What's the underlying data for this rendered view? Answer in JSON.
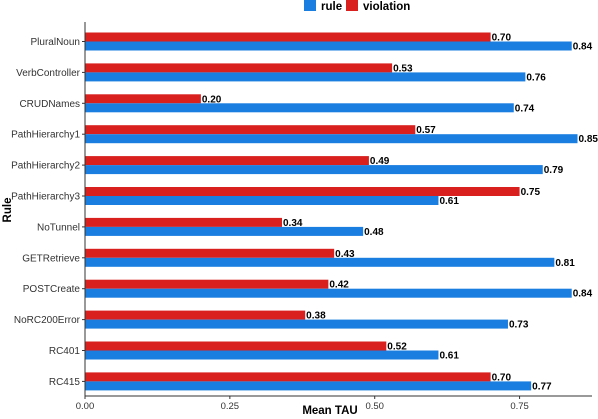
{
  "chart_data": {
    "type": "bar",
    "orientation": "horizontal",
    "xlabel": "Mean TAU",
    "ylabel": "Rule",
    "xlim": [
      0,
      0.875
    ],
    "xticks": [
      "0.00",
      "0.25",
      "0.50",
      "0.75"
    ],
    "legend_position": "top",
    "categories": [
      "PluralNoun",
      "VerbController",
      "CRUDNames",
      "PathHierarchy1",
      "PathHierarchy2",
      "PathHierarchy3",
      "NoTunnel",
      "GETRetrieve",
      "POSTCreate",
      "NoRC200Error",
      "RC401",
      "RC415"
    ],
    "series": [
      {
        "name": "rule",
        "color": "#1a7ee0",
        "values": [
          0.84,
          0.76,
          0.74,
          0.85,
          0.79,
          0.61,
          0.48,
          0.81,
          0.84,
          0.73,
          0.61,
          0.77
        ],
        "labels": [
          "0.84",
          "0.76",
          "0.74",
          "0.85",
          "0.79",
          "0.61",
          "0.48",
          "0.81",
          "0.84",
          "0.73",
          "0.61",
          "0.77"
        ]
      },
      {
        "name": "violation",
        "color": "#d9201e",
        "values": [
          0.7,
          0.53,
          0.2,
          0.57,
          0.49,
          0.75,
          0.34,
          0.43,
          0.42,
          0.38,
          0.52,
          0.7
        ],
        "labels": [
          "0.70",
          "0.53",
          "0.20",
          "0.57",
          "0.49",
          "0.75",
          "0.34",
          "0.43",
          "0.42",
          "0.38",
          "0.52",
          "0.70"
        ]
      }
    ]
  }
}
